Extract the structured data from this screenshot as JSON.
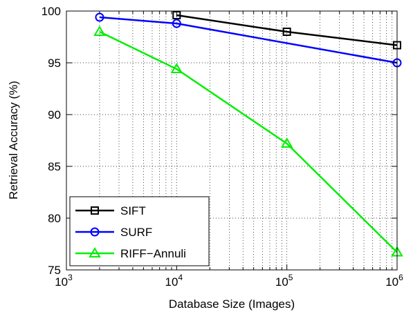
{
  "chart_data": {
    "type": "line",
    "xscale": "log",
    "xlabel": "Database Size (Images)",
    "ylabel": "Retrieval Accuracy (%)",
    "xlim": [
      1000,
      1000000
    ],
    "ylim": [
      75,
      100
    ],
    "x_ticks": [
      {
        "value": 1000,
        "base": "10",
        "exp": "3"
      },
      {
        "value": 10000,
        "base": "10",
        "exp": "4"
      },
      {
        "value": 100000,
        "base": "10",
        "exp": "5"
      },
      {
        "value": 1000000,
        "base": "10",
        "exp": "6"
      }
    ],
    "y_ticks": [
      75,
      80,
      85,
      90,
      95,
      100
    ],
    "grid": true,
    "legend_position": "bottom-left",
    "series": [
      {
        "name": "SIFT",
        "color": "#000000",
        "marker": "square",
        "x": [
          10000,
          100000,
          1000000
        ],
        "y": [
          99.6,
          98.0,
          96.7
        ]
      },
      {
        "name": "SURF",
        "color": "#0000ff",
        "marker": "circle",
        "x": [
          2000,
          10000,
          1000000
        ],
        "y": [
          99.4,
          98.8,
          95.0
        ]
      },
      {
        "name": "RIFF−Annuli",
        "color": "#00ee00",
        "marker": "triangle",
        "x": [
          2000,
          10000,
          100000,
          1000000
        ],
        "y": [
          98.0,
          94.4,
          87.2,
          76.7
        ]
      }
    ]
  }
}
